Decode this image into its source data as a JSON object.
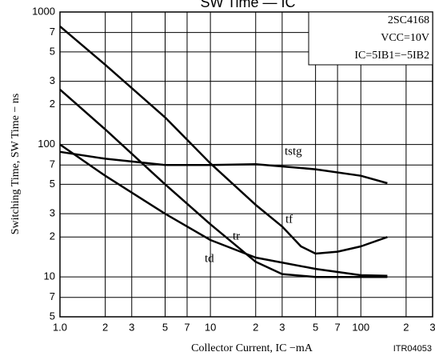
{
  "chart_data": {
    "type": "line",
    "title": "SW Time — IC",
    "xlabel": "Collector Current, IC −mA",
    "ylabel": "Switching Time, SW Time − ns",
    "note": "ITR04053",
    "conditions": [
      "2SC4168",
      "VCC=10V",
      "IC=5IB1=−5IB2"
    ],
    "log_x": true,
    "log_y": true,
    "grid": true,
    "xlim": [
      1,
      300
    ],
    "ylim": [
      5,
      1000
    ],
    "xticks": [
      {
        "value": 1,
        "label": "1.0"
      },
      2,
      3,
      5,
      7,
      10,
      {
        "value": 20,
        "label": "2"
      },
      {
        "value": 30,
        "label": "3"
      },
      {
        "value": 50,
        "label": "5"
      },
      {
        "value": 70,
        "label": "7"
      },
      100,
      {
        "value": 200,
        "label": "2"
      },
      {
        "value": 300,
        "label": "3"
      }
    ],
    "yticks": [
      1000,
      {
        "value": 700,
        "label": "7"
      },
      {
        "value": 500,
        "label": "5"
      },
      {
        "value": 300,
        "label": "3"
      },
      {
        "value": 200,
        "label": "2"
      },
      100,
      {
        "value": 70,
        "label": "7"
      },
      {
        "value": 50,
        "label": "5"
      },
      {
        "value": 30,
        "label": "3"
      },
      {
        "value": 20,
        "label": "2"
      },
      10,
      7,
      5
    ],
    "series": [
      {
        "name": "tstg",
        "color": "#000000",
        "x": [
          1,
          2,
          5,
          10,
          20,
          50,
          100,
          150
        ],
        "values": [
          88,
          78,
          70,
          70,
          71,
          65,
          58,
          51
        ]
      },
      {
        "name": "tf",
        "color": "#000000",
        "x": [
          1,
          2,
          5,
          10,
          20,
          30,
          40,
          50,
          70,
          100,
          150
        ],
        "values": [
          780,
          400,
          160,
          72,
          35,
          24,
          17,
          15,
          15.5,
          17,
          20
        ]
      },
      {
        "name": "tr",
        "color": "#000000",
        "x": [
          1,
          2,
          5,
          10,
          20,
          30,
          50,
          100,
          150
        ],
        "values": [
          260,
          130,
          50,
          25,
          13,
          10.5,
          10,
          10,
          10
        ]
      },
      {
        "name": "td",
        "color": "#000000",
        "x": [
          1,
          2,
          5,
          10,
          20,
          50,
          100,
          150
        ],
        "values": [
          100,
          58,
          30,
          19,
          14,
          11.5,
          10.3,
          10.2
        ]
      }
    ]
  }
}
